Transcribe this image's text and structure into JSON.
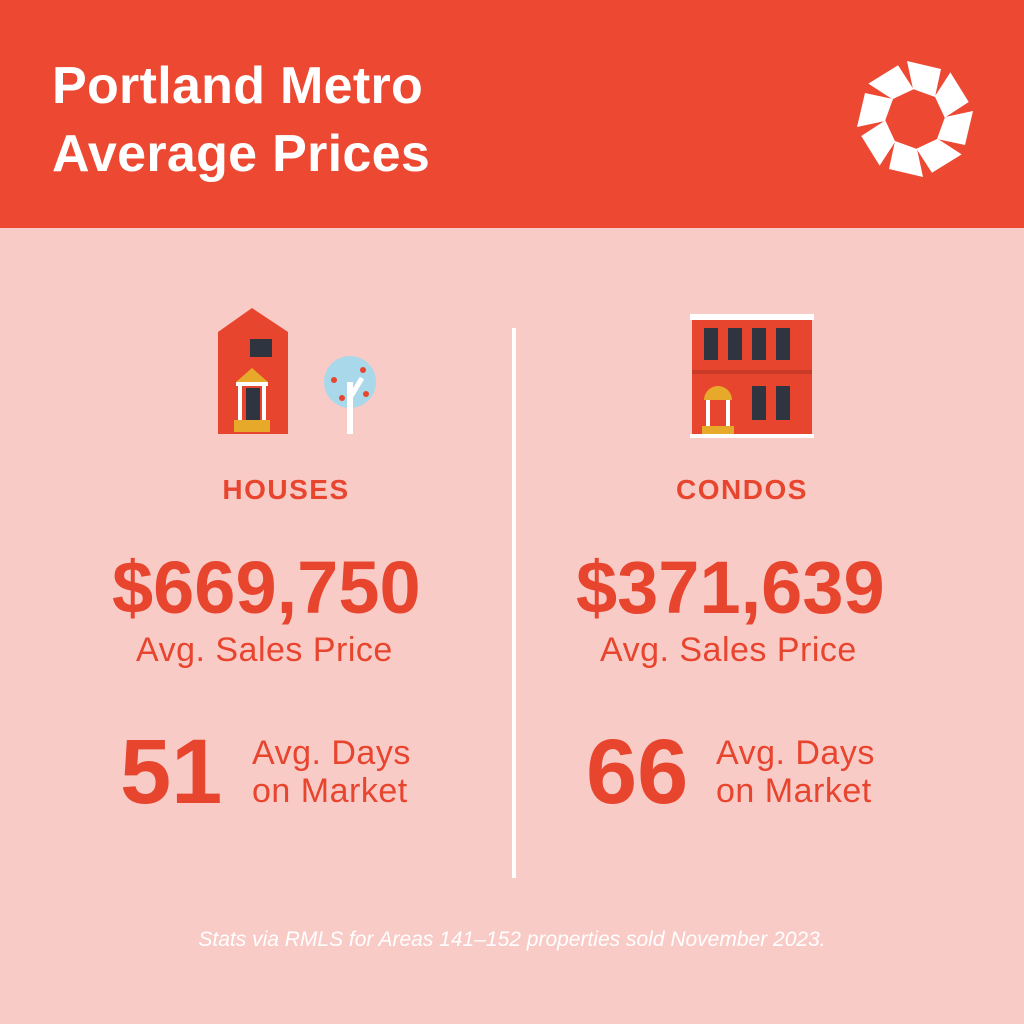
{
  "header": {
    "title_line1": "Portland Metro",
    "title_line2": "Average Prices",
    "logo_icon": "pinwheel-logo-icon",
    "background_color": "#ec4832"
  },
  "houses": {
    "icon": "house-with-tree-icon",
    "label": "HOUSES",
    "price": "$669,750",
    "price_caption": "Avg. Sales Price",
    "days": "51",
    "days_caption_line1": "Avg. Days",
    "days_caption_line2": "on Market"
  },
  "condos": {
    "icon": "condo-building-icon",
    "label": "CONDOS",
    "price": "$371,639",
    "price_caption": "Avg. Sales Price",
    "days": "66",
    "days_caption_line1": "Avg. Days",
    "days_caption_line2": "on Market"
  },
  "footnote": "Stats via RMLS for Areas 141–152 properties sold November 2023.",
  "colors": {
    "accent": "#e8452f",
    "background": "#f9cbc7",
    "gold": "#e6a92a",
    "dark_window": "#2e3440",
    "tree_blue": "#a8d8ea"
  }
}
